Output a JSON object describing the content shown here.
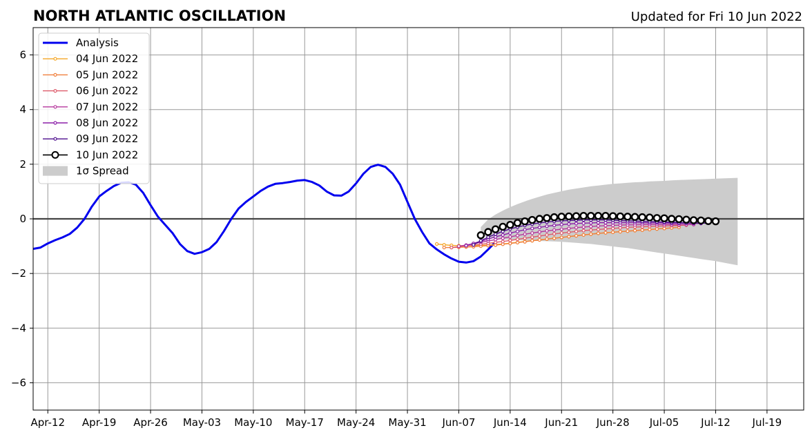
{
  "chart_data": {
    "type": "line",
    "title": "NORTH ATLANTIC OSCILLATION",
    "subtitle": "Updated for Fri 10 Jun 2022",
    "x_start_date": "2022-04-10",
    "xlim": [
      "2022-04-10",
      "2022-07-24"
    ],
    "ylim": [
      -7,
      7
    ],
    "grid": true,
    "legend_position": "top-left",
    "x_ticks": [
      "Apr-12",
      "Apr-19",
      "Apr-26",
      "May-03",
      "May-10",
      "May-17",
      "May-24",
      "May-31",
      "Jun-07",
      "Jun-14",
      "Jun-21",
      "Jun-28",
      "Jul-05",
      "Jul-12",
      "Jul-19"
    ],
    "y_ticks": [
      6,
      4,
      2,
      0,
      -2,
      -4,
      -6
    ],
    "y_tick_labels": [
      "6",
      "4",
      "2",
      "0",
      "−2",
      "−4",
      "−6"
    ],
    "colors": {
      "analysis": "#0000ee",
      "zero_line": "#444444",
      "grid": "#999999",
      "spread": "#cccccc"
    },
    "analysis": {
      "name": "Analysis",
      "start": "2022-04-10",
      "values": [
        -1.1,
        -1.05,
        -0.9,
        -0.78,
        -0.68,
        -0.55,
        -0.32,
        0.0,
        0.45,
        0.82,
        1.02,
        1.2,
        1.32,
        1.34,
        1.25,
        0.95,
        0.5,
        0.08,
        -0.22,
        -0.52,
        -0.92,
        -1.18,
        -1.28,
        -1.22,
        -1.1,
        -0.85,
        -0.45,
        0.0,
        0.38,
        0.62,
        0.82,
        1.02,
        1.18,
        1.28,
        1.31,
        1.35,
        1.4,
        1.42,
        1.35,
        1.22,
        1.0,
        0.86,
        0.85,
        1.0,
        1.3,
        1.65,
        1.9,
        1.98,
        1.9,
        1.65,
        1.25,
        0.62,
        0.0,
        -0.48,
        -0.9,
        -1.12,
        -1.3,
        -1.45,
        -1.57,
        -1.6,
        -1.55,
        -1.38,
        -1.12,
        -0.85
      ]
    },
    "forecasts": [
      {
        "name": "04 Jun 2022",
        "color": "#f5a623",
        "start": "2022-06-04",
        "values": [
          -0.92,
          -0.95,
          -0.97,
          -0.98,
          -0.98,
          -0.98,
          -0.97,
          -0.96,
          -0.94,
          -0.92,
          -0.89,
          -0.86,
          -0.83,
          -0.8,
          -0.77,
          -0.74,
          -0.71,
          -0.68,
          -0.65,
          -0.62,
          -0.59,
          -0.56,
          -0.53,
          -0.51,
          -0.49,
          -0.47,
          -0.45,
          -0.43,
          -0.41,
          -0.39,
          -0.37,
          -0.35,
          -0.33
        ]
      },
      {
        "name": "05 Jun 2022",
        "color": "#f07f3c",
        "start": "2022-06-05",
        "values": [
          -1.05,
          -1.05,
          -1.04,
          -1.03,
          -1.02,
          -1.0,
          -0.98,
          -0.96,
          -0.93,
          -0.9,
          -0.87,
          -0.84,
          -0.8,
          -0.77,
          -0.74,
          -0.71,
          -0.68,
          -0.65,
          -0.62,
          -0.59,
          -0.56,
          -0.53,
          -0.51,
          -0.49,
          -0.47,
          -0.45,
          -0.43,
          -0.41,
          -0.39,
          -0.37,
          -0.35,
          -0.33,
          -0.31
        ]
      },
      {
        "name": "06 Jun 2022",
        "color": "#dd5a6a",
        "start": "2022-06-06",
        "values": [
          -1.05,
          -1.02,
          -0.99,
          -0.96,
          -0.93,
          -0.9,
          -0.86,
          -0.83,
          -0.79,
          -0.75,
          -0.71,
          -0.67,
          -0.63,
          -0.59,
          -0.55,
          -0.52,
          -0.49,
          -0.46,
          -0.43,
          -0.41,
          -0.39,
          -0.37,
          -0.35,
          -0.33,
          -0.31,
          -0.3,
          -0.29,
          -0.28,
          -0.27,
          -0.26,
          -0.25,
          -0.24,
          -0.23
        ]
      },
      {
        "name": "07 Jun 2022",
        "color": "#b5359c",
        "start": "2022-06-07",
        "values": [
          -1.0,
          -0.96,
          -0.91,
          -0.86,
          -0.81,
          -0.76,
          -0.71,
          -0.66,
          -0.61,
          -0.56,
          -0.52,
          -0.48,
          -0.44,
          -0.41,
          -0.38,
          -0.35,
          -0.32,
          -0.3,
          -0.28,
          -0.26,
          -0.25,
          -0.24,
          -0.23,
          -0.22,
          -0.22,
          -0.21,
          -0.21,
          -0.21,
          -0.21,
          -0.21,
          -0.21,
          -0.21,
          -0.21
        ]
      },
      {
        "name": "08 Jun 2022",
        "color": "#8b1fa8",
        "start": "2022-06-08",
        "values": [
          -0.98,
          -0.9,
          -0.82,
          -0.74,
          -0.66,
          -0.59,
          -0.52,
          -0.46,
          -0.4,
          -0.35,
          -0.31,
          -0.27,
          -0.24,
          -0.21,
          -0.19,
          -0.17,
          -0.16,
          -0.15,
          -0.14,
          -0.14,
          -0.14,
          -0.14,
          -0.14,
          -0.14,
          -0.14,
          -0.15,
          -0.15,
          -0.15,
          -0.16,
          -0.16,
          -0.16,
          -0.17,
          -0.17
        ]
      },
      {
        "name": "09 Jun 2022",
        "color": "#4b0b8c",
        "start": "2022-06-09",
        "values": [
          -0.95,
          -0.8,
          -0.67,
          -0.56,
          -0.46,
          -0.37,
          -0.3,
          -0.24,
          -0.19,
          -0.15,
          -0.12,
          -0.09,
          -0.07,
          -0.06,
          -0.05,
          -0.04,
          -0.04,
          -0.04,
          -0.04,
          -0.05,
          -0.06,
          -0.07,
          -0.08,
          -0.09,
          -0.1,
          -0.11,
          -0.12,
          -0.13,
          -0.14,
          -0.15,
          -0.15,
          -0.16,
          -0.16
        ]
      }
    ],
    "latest_forecast": {
      "name": "10 Jun 2022",
      "color": "#000000",
      "start": "2022-06-10",
      "values": [
        -0.6,
        -0.48,
        -0.38,
        -0.29,
        -0.22,
        -0.15,
        -0.09,
        -0.04,
        0.0,
        0.03,
        0.06,
        0.08,
        0.09,
        0.1,
        0.11,
        0.11,
        0.11,
        0.11,
        0.1,
        0.09,
        0.08,
        0.07,
        0.06,
        0.05,
        0.03,
        0.02,
        0.0,
        -0.01,
        -0.03,
        -0.05,
        -0.06,
        -0.08,
        -0.09
      ]
    },
    "spread": {
      "name": "1σ Spread",
      "start": "2022-06-10",
      "upper": [
        -0.3,
        -0.02,
        0.16,
        0.3,
        0.43,
        0.54,
        0.64,
        0.73,
        0.81,
        0.89,
        0.95,
        1.01,
        1.07,
        1.11,
        1.15,
        1.19,
        1.22,
        1.25,
        1.28,
        1.3,
        1.32,
        1.34,
        1.35,
        1.37,
        1.38,
        1.39,
        1.41,
        1.42,
        1.43,
        1.44,
        1.45,
        1.46,
        1.47,
        1.48,
        1.49,
        1.5
      ],
      "lower": [
        -0.6,
        -0.68,
        -0.72,
        -0.75,
        -0.77,
        -0.78,
        -0.79,
        -0.8,
        -0.81,
        -0.82,
        -0.83,
        -0.84,
        -0.86,
        -0.88,
        -0.9,
        -0.92,
        -0.95,
        -0.98,
        -1.01,
        -1.04,
        -1.07,
        -1.11,
        -1.15,
        -1.19,
        -1.23,
        -1.27,
        -1.31,
        -1.35,
        -1.39,
        -1.43,
        -1.47,
        -1.51,
        -1.55,
        -1.6,
        -1.65,
        -1.7
      ]
    },
    "legend": [
      "Analysis",
      "04 Jun 2022",
      "05 Jun 2022",
      "06 Jun 2022",
      "07 Jun 2022",
      "08 Jun 2022",
      "09 Jun 2022",
      "10 Jun 2022",
      "1σ Spread"
    ]
  }
}
